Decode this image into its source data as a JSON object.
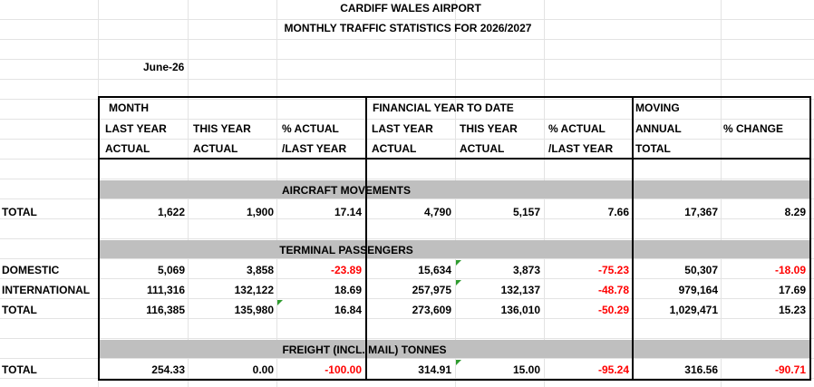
{
  "header": {
    "title": "CARDIFF WALES AIRPORT",
    "subtitle": "MONTHLY TRAFFIC STATISTICS FOR  2026/2027",
    "period": "June-26"
  },
  "columns": {
    "month": {
      "group": "MONTH",
      "last_year": [
        "LAST YEAR",
        "ACTUAL"
      ],
      "this_year": [
        "THIS YEAR",
        "ACTUAL"
      ],
      "pct": [
        "% ACTUAL",
        "/LAST YEAR"
      ]
    },
    "fytd": {
      "group": "FINANCIAL YEAR TO DATE",
      "last_year": [
        "LAST YEAR",
        "ACTUAL"
      ],
      "this_year": [
        "THIS YEAR",
        "ACTUAL"
      ],
      "pct": [
        "% ACTUAL",
        "/LAST YEAR"
      ]
    },
    "moving": {
      "group": [
        "MOVING",
        "ANNUAL",
        "TOTAL"
      ],
      "pct": "% CHANGE"
    }
  },
  "sections": {
    "aircraft": {
      "title": "AIRCRAFT MOVEMENTS",
      "rows": [
        {
          "label": "TOTAL",
          "values": [
            "1,622",
            "1,900",
            "17.14",
            "4,790",
            "5,157",
            "7.66",
            "17,367",
            "8.29"
          ]
        }
      ]
    },
    "passengers": {
      "title": "TERMINAL PASSENGERS",
      "rows": [
        {
          "label": "DOMESTIC",
          "values": [
            "5,069",
            "3,858",
            "-23.89",
            "15,634",
            "3,873",
            "-75.23",
            "50,307",
            "-18.09"
          ]
        },
        {
          "label": "INTERNATIONAL",
          "values": [
            "111,316",
            "132,122",
            "18.69",
            "257,975",
            "132,137",
            "-48.78",
            "979,164",
            "17.69"
          ]
        },
        {
          "label": "TOTAL",
          "values": [
            "116,385",
            "135,980",
            "16.84",
            "273,609",
            "136,010",
            "-50.29",
            "1,029,471",
            "15.23"
          ]
        }
      ]
    },
    "freight": {
      "title": "FREIGHT (INCL. MAIL) TONNES",
      "rows": [
        {
          "label": "TOTAL",
          "values": [
            "254.33",
            "0.00",
            "-100.00",
            "314.91",
            "15.00",
            "-95.24",
            "316.56",
            "-90.71"
          ]
        }
      ]
    }
  },
  "colors": {
    "negative": "#ff0000",
    "band": "#bfbfbf",
    "indicator": "#2e9b2e"
  }
}
